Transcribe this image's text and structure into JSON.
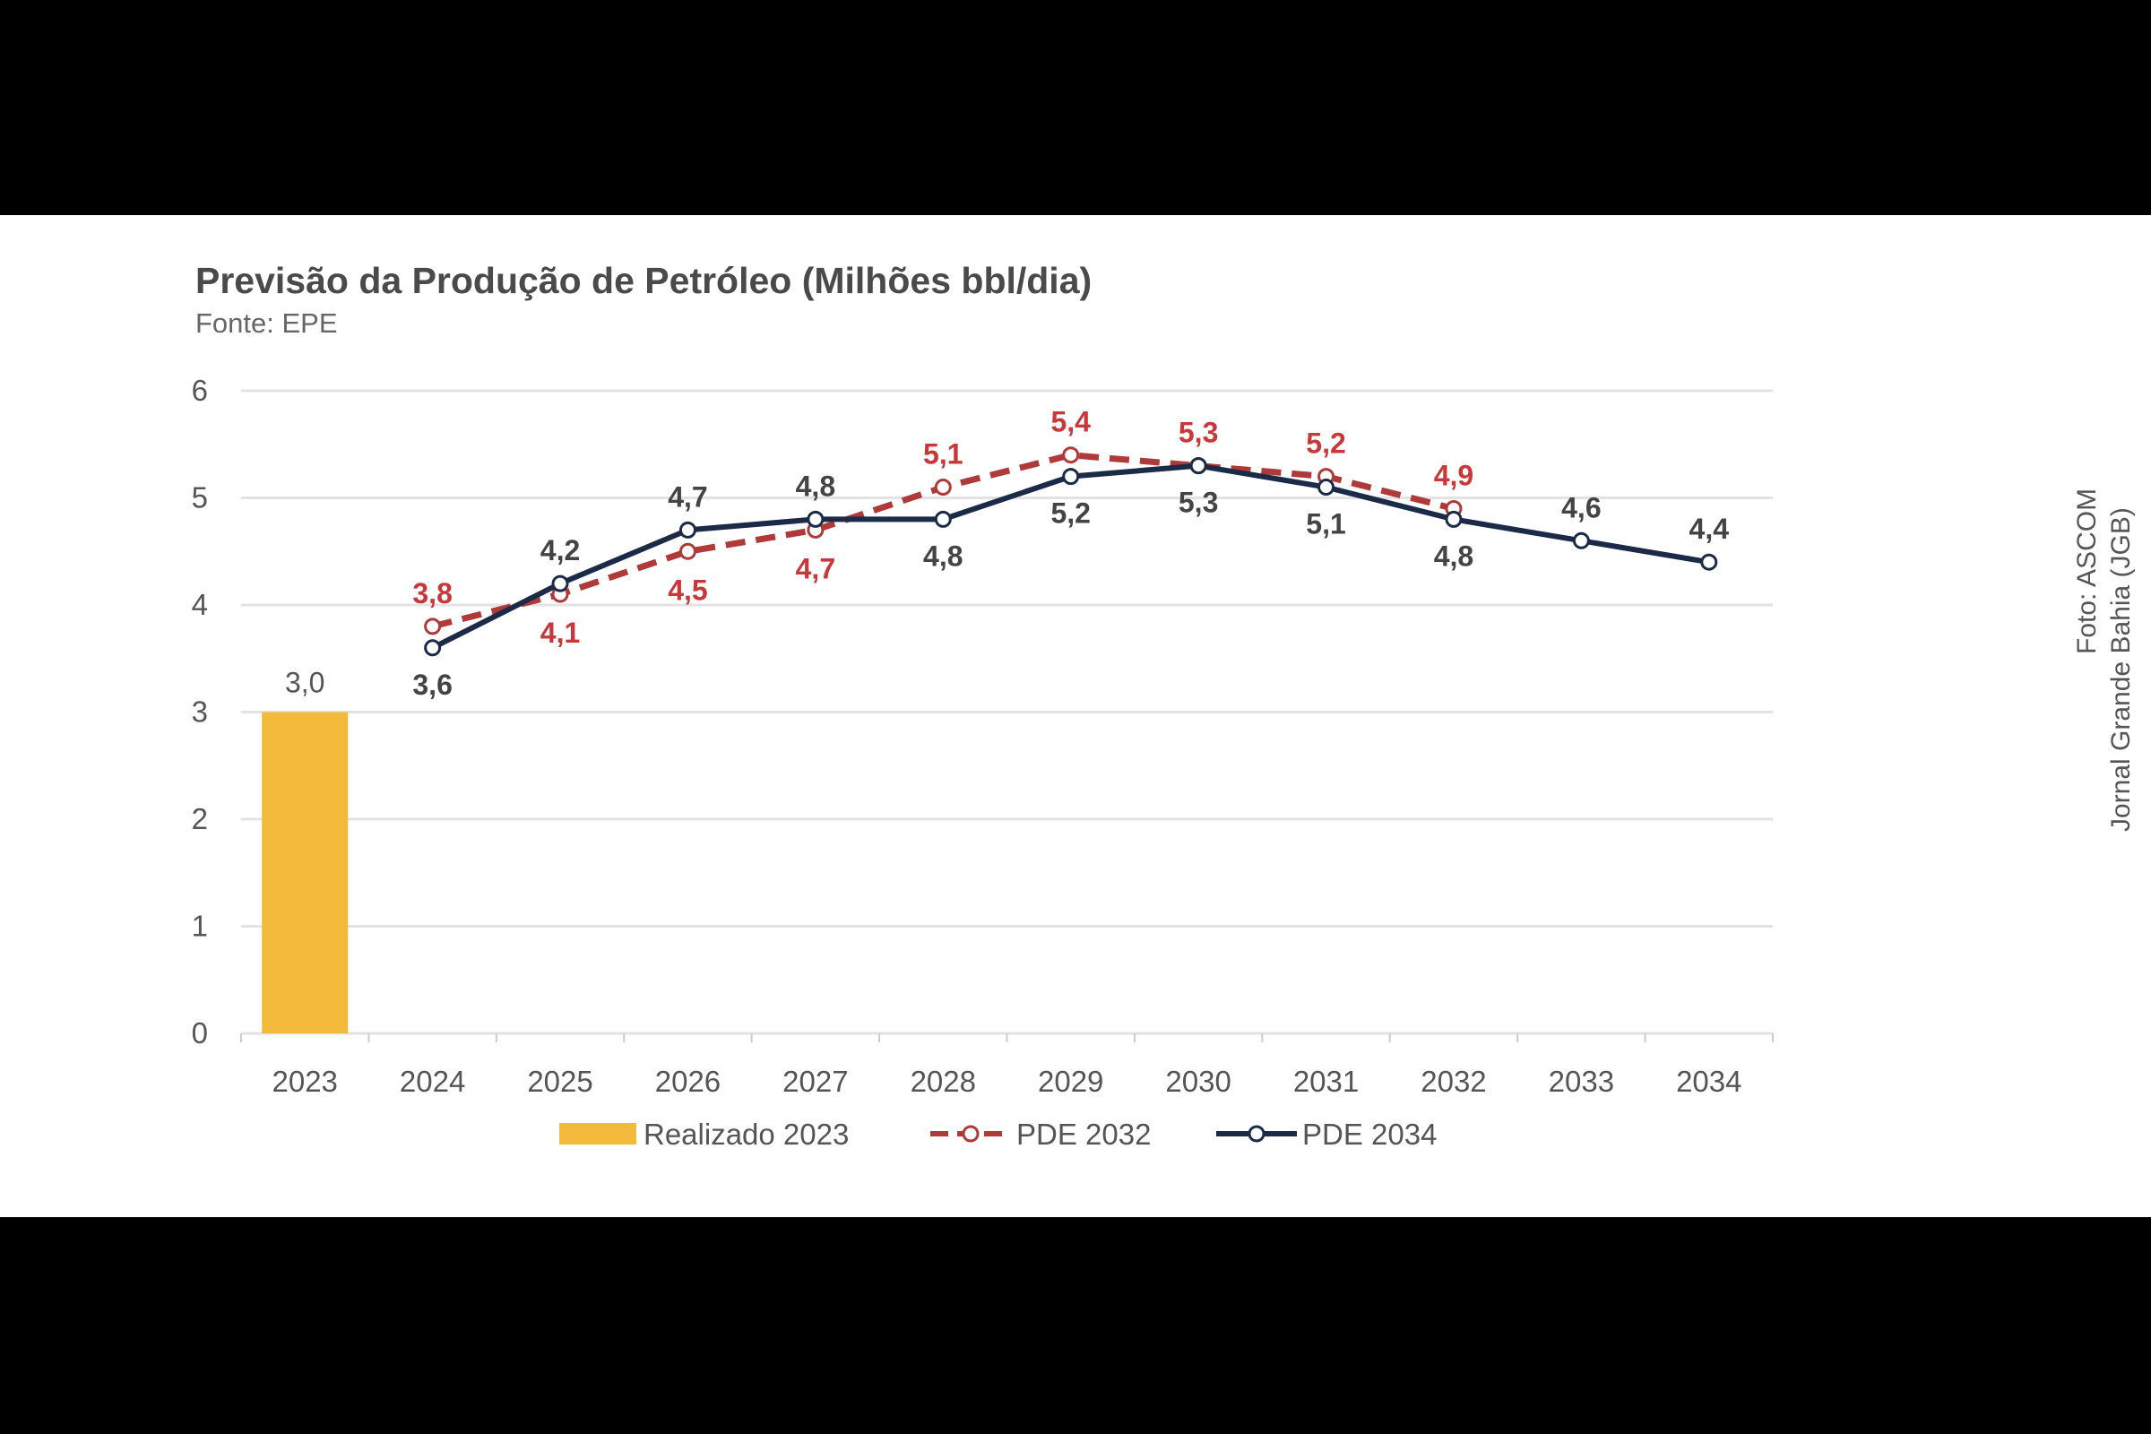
{
  "chart_data": {
    "type": "bar+line",
    "title": "Previsão da Produção de Petróleo (Milhões bbl/dia)",
    "subtitle": "Fonte: EPE",
    "categories": [
      "2023",
      "2024",
      "2025",
      "2026",
      "2027",
      "2028",
      "2029",
      "2030",
      "2031",
      "2032",
      "2033",
      "2034"
    ],
    "ylim": [
      0,
      6
    ],
    "yticks": [
      "0",
      "1",
      "2",
      "3",
      "4",
      "5",
      "6"
    ],
    "grid": true,
    "legend_position": "bottom",
    "series": [
      {
        "name": "Realizado 2023",
        "type": "bar",
        "color": "#F2B93B",
        "values": [
          3.0,
          null,
          null,
          null,
          null,
          null,
          null,
          null,
          null,
          null,
          null,
          null
        ],
        "labels": [
          "3,0"
        ]
      },
      {
        "name": "PDE 2032",
        "type": "line",
        "style": "dashed",
        "color": "#B03A3A",
        "values": [
          null,
          3.8,
          4.1,
          4.5,
          4.7,
          5.1,
          5.4,
          5.3,
          5.2,
          4.9,
          null,
          null
        ],
        "labels": [
          null,
          "3,8",
          "4,1",
          "4,5",
          "4,7",
          "5,1",
          "5,4",
          "5,3",
          "5,2",
          "4,9",
          null,
          null
        ]
      },
      {
        "name": "PDE 2034",
        "type": "line",
        "style": "solid",
        "color": "#1B2A47",
        "values": [
          null,
          3.6,
          4.2,
          4.7,
          4.8,
          4.8,
          5.2,
          5.3,
          5.1,
          4.8,
          4.6,
          4.4
        ],
        "labels": [
          null,
          "3,6",
          "4,2",
          "4,7",
          "4,8",
          "4,8",
          "5,2",
          "5,3",
          "5,1",
          "4,8",
          "4,6",
          "4,4"
        ]
      }
    ]
  },
  "watermark": {
    "line1": "Foto: ASCOM",
    "line2": "Jornal Grande Bahia (JGB)"
  }
}
